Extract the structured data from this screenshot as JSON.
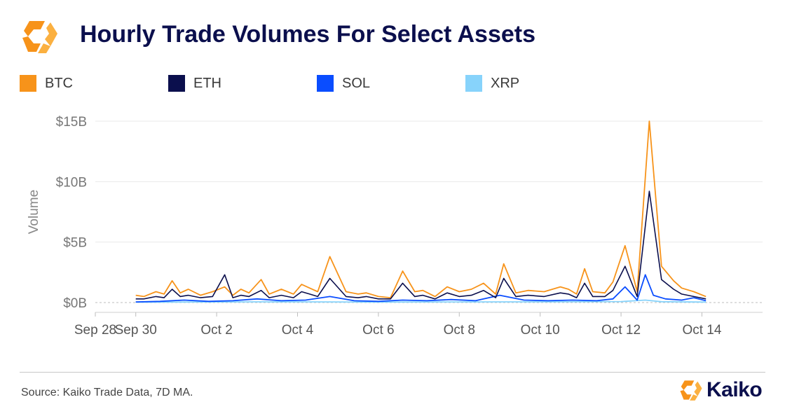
{
  "header": {
    "title": "Hourly Trade Volumes For Select Assets"
  },
  "colors": {
    "btc": "#f7931a",
    "eth": "#0b0f4d",
    "sol": "#0a4dff",
    "xrp": "#87d3fb",
    "brand": "#f7931a"
  },
  "chart_data": {
    "type": "line",
    "title": "Hourly Trade Volumes For Select Assets",
    "ylabel": "Volume",
    "xlabel": "",
    "ylim": [
      0,
      15
    ],
    "y_unit": "billion USD",
    "y_ticks": [
      0,
      5,
      10,
      15
    ],
    "y_tick_labels": [
      "$0B",
      "$5B",
      "$10B",
      "$15B"
    ],
    "xlim": [
      0,
      16.5
    ],
    "x_ticks": [
      0,
      1,
      3,
      5,
      7,
      9,
      11,
      13,
      15
    ],
    "x_tick_labels": [
      "Sep 28",
      "Sep 30",
      "Oct 2",
      "Oct 4",
      "Oct 6",
      "Oct 8",
      "Oct 10",
      "Oct 12",
      "Oct 14"
    ],
    "x_unit": "days since Sep 28 (per tick labels)",
    "grid": true,
    "legend_position": "top",
    "series": [
      {
        "name": "BTC",
        "color": "#f7931a",
        "x": [
          1,
          1.2,
          1.5,
          1.7,
          1.9,
          2.1,
          2.3,
          2.6,
          2.9,
          3.2,
          3.4,
          3.6,
          3.8,
          4.1,
          4.3,
          4.6,
          4.9,
          5.1,
          5.3,
          5.5,
          5.8,
          6.2,
          6.5,
          6.7,
          7.0,
          7.3,
          7.6,
          7.9,
          8.1,
          8.4,
          8.7,
          9.0,
          9.3,
          9.6,
          9.9,
          10.1,
          10.4,
          10.7,
          11.1,
          11.5,
          11.7,
          11.9,
          12.1,
          12.3,
          12.6,
          12.8,
          13.1,
          13.4,
          13.7,
          14.0,
          14.3,
          14.5,
          14.8,
          15.1
        ],
        "y": [
          0.6,
          0.5,
          0.9,
          0.7,
          1.8,
          0.8,
          1.1,
          0.6,
          0.9,
          1.3,
          0.6,
          1.1,
          0.8,
          1.9,
          0.7,
          1.1,
          0.7,
          1.5,
          1.2,
          0.9,
          3.8,
          0.9,
          0.7,
          0.8,
          0.5,
          0.4,
          2.6,
          0.9,
          1.0,
          0.5,
          1.3,
          0.9,
          1.1,
          1.6,
          0.7,
          3.2,
          0.8,
          1.0,
          0.9,
          1.3,
          1.1,
          0.7,
          2.8,
          0.9,
          0.8,
          1.7,
          4.7,
          0.9,
          15.0,
          3.0,
          1.8,
          1.2,
          0.9,
          0.5
        ]
      },
      {
        "name": "ETH",
        "color": "#0b0f4d",
        "x": [
          1,
          1.2,
          1.5,
          1.7,
          1.9,
          2.1,
          2.3,
          2.6,
          2.9,
          3.2,
          3.4,
          3.6,
          3.8,
          4.1,
          4.3,
          4.6,
          4.9,
          5.1,
          5.3,
          5.5,
          5.8,
          6.2,
          6.5,
          6.7,
          7.0,
          7.3,
          7.6,
          7.9,
          8.1,
          8.4,
          8.7,
          9.0,
          9.3,
          9.6,
          9.9,
          10.1,
          10.4,
          10.7,
          11.1,
          11.5,
          11.7,
          11.9,
          12.1,
          12.3,
          12.6,
          12.8,
          13.1,
          13.4,
          13.7,
          14.0,
          14.3,
          14.5,
          14.8,
          15.1
        ],
        "y": [
          0.3,
          0.3,
          0.5,
          0.4,
          1.1,
          0.5,
          0.6,
          0.4,
          0.5,
          2.3,
          0.4,
          0.6,
          0.5,
          1.0,
          0.4,
          0.6,
          0.4,
          0.9,
          0.7,
          0.5,
          2.0,
          0.5,
          0.4,
          0.5,
          0.3,
          0.3,
          1.6,
          0.5,
          0.6,
          0.3,
          0.8,
          0.5,
          0.6,
          1.0,
          0.4,
          2.0,
          0.5,
          0.6,
          0.5,
          0.8,
          0.7,
          0.4,
          1.6,
          0.5,
          0.5,
          1.0,
          3.0,
          0.5,
          9.2,
          1.9,
          1.1,
          0.7,
          0.5,
          0.3
        ]
      },
      {
        "name": "SOL",
        "color": "#0a4dff",
        "x": [
          1,
          1.6,
          2.2,
          2.8,
          3.4,
          4.0,
          4.6,
          5.2,
          5.8,
          6.4,
          7.0,
          7.6,
          8.2,
          8.8,
          9.4,
          10.0,
          10.6,
          11.2,
          11.8,
          12.4,
          12.8,
          13.1,
          13.4,
          13.6,
          13.8,
          14.1,
          14.5,
          14.8,
          15.1
        ],
        "y": [
          0.05,
          0.1,
          0.2,
          0.1,
          0.15,
          0.3,
          0.15,
          0.2,
          0.5,
          0.15,
          0.1,
          0.2,
          0.15,
          0.25,
          0.15,
          0.6,
          0.2,
          0.15,
          0.2,
          0.15,
          0.3,
          1.3,
          0.2,
          2.3,
          0.6,
          0.3,
          0.2,
          0.4,
          0.15
        ]
      },
      {
        "name": "XRP",
        "color": "#87d3fb",
        "x": [
          1,
          3,
          5,
          7,
          9,
          11,
          13,
          13.6,
          14,
          15.1
        ],
        "y": [
          0.03,
          0.05,
          0.06,
          0.04,
          0.05,
          0.06,
          0.08,
          0.2,
          0.07,
          0.04
        ]
      }
    ]
  },
  "footer": {
    "source": "Source: Kaiko Trade Data, 7D MA.",
    "brand": "Kaiko"
  }
}
